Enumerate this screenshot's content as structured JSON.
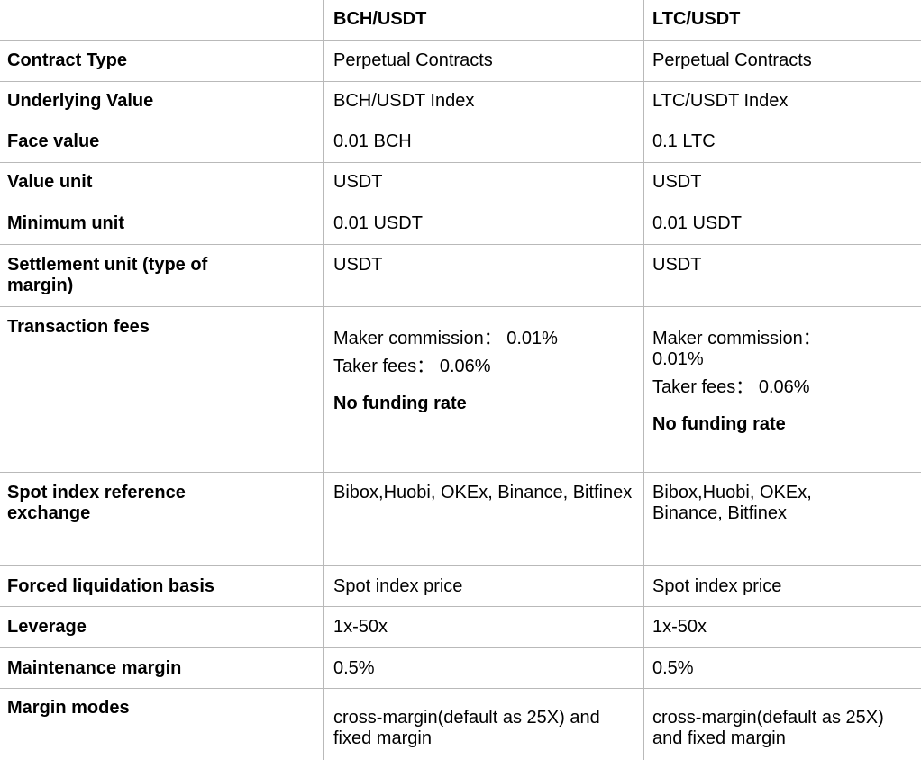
{
  "table": {
    "headers": {
      "corner": "",
      "col1": "BCH/USDT",
      "col2": "LTC/USDT"
    },
    "rows": [
      {
        "label": "Contract Type",
        "col1": "Perpetual Contracts",
        "col2": "Perpetual Contracts"
      },
      {
        "label": "Underlying Value",
        "col1": "BCH/USDT Index",
        "col2": "LTC/USDT Index"
      },
      {
        "label": "Face value",
        "col1": "0.01 BCH",
        "col2": "0.1 LTC"
      },
      {
        "label": "Value unit",
        "col1": "USDT",
        "col2": "USDT"
      },
      {
        "label": "Minimum unit",
        "col1": "0.01 USDT",
        "col2": "0.01 USDT"
      },
      {
        "label": "Settlement unit (type of margin)",
        "col1": "USDT",
        "col2": "USDT"
      },
      {
        "label": "Transaction fees",
        "col1": {
          "maker": "Maker commission： 0.01%",
          "taker": "Taker fees： 0.06%",
          "note": "No funding rate"
        },
        "col2": {
          "maker": "Maker commission： 0.01%",
          "taker": "Taker fees： 0.06%",
          "note": "No funding rate"
        }
      },
      {
        "label": "Spot index reference exchange",
        "col1": "Bibox,Huobi, OKEx, Binance, Bitfinex",
        "col2": "Bibox,Huobi, OKEx, Binance, Bitfinex"
      },
      {
        "label": "Forced liquidation basis",
        "col1": "Spot index price",
        "col2": "Spot index price"
      },
      {
        "label": "Leverage",
        "col1": "1x-50x",
        "col2": "1x-50x"
      },
      {
        "label": "Maintenance margin",
        "col1": "0.5%",
        "col2": "0.5%"
      },
      {
        "label": "Margin modes",
        "col1": "cross-margin(default as 25X) and fixed margin",
        "col2": "cross-margin(default as 25X) and fixed margin"
      }
    ]
  }
}
